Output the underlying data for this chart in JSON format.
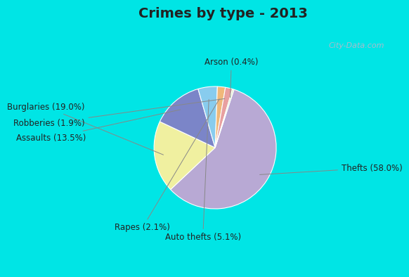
{
  "title": "Crimes by type - 2013",
  "labels": [
    "Thefts",
    "Burglaries",
    "Assaults",
    "Auto thefts",
    "Rapes",
    "Robberies",
    "Arson"
  ],
  "pct_labels": [
    "Thefts (58.0%)",
    "Burglaries (19.0%)",
    "Assaults (13.5%)",
    "Auto thefts (5.1%)",
    "Rapes (2.1%)",
    "Robberies (1.9%)",
    "Arson (0.4%)"
  ],
  "values": [
    58.0,
    19.0,
    13.5,
    5.1,
    2.1,
    1.9,
    0.4
  ],
  "colors": [
    "#b8a9d4",
    "#f0f0a0",
    "#7b85c8",
    "#88ccee",
    "#f0b87a",
    "#e8a0a0",
    "#d8e8c0"
  ],
  "bg_border": "#00e5e5",
  "bg_inner": "#d8eedc",
  "title_fontsize": 14,
  "label_fontsize": 8.5,
  "startangle": 72,
  "watermark": "City-Data.com"
}
